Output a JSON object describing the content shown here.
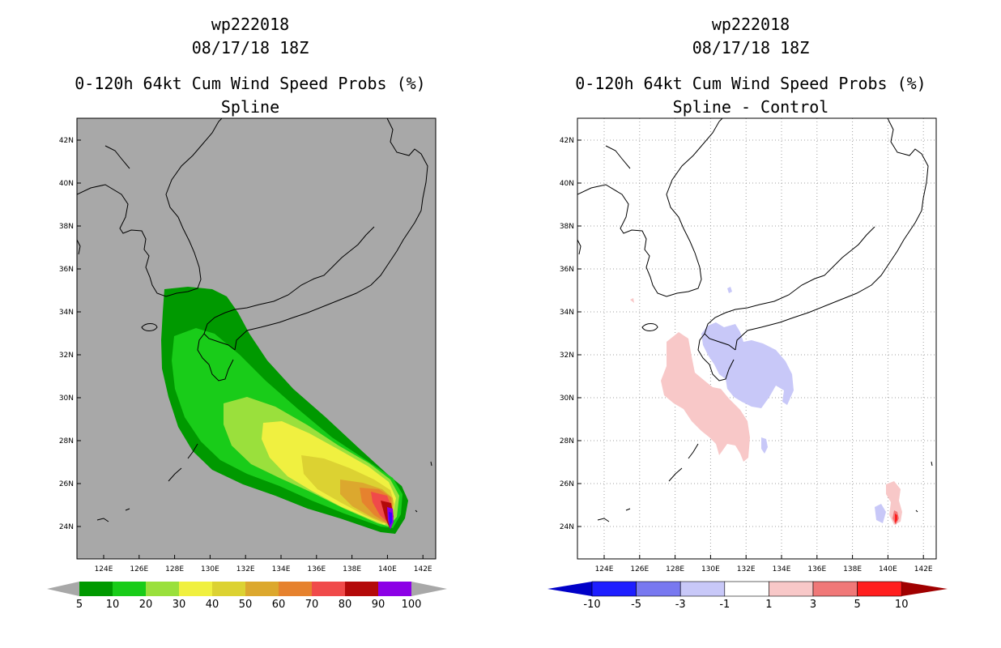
{
  "storm_id": "wp222018",
  "datetime": "08/17/18 18Z",
  "product": "0-120h 64kt Cum Wind Speed Probs (%)",
  "colors": {
    "land_sea_bg": "#a8a8a8",
    "coast": "#000000",
    "grid_dots": "#a0a0a0"
  },
  "axes": {
    "x_ticks": [
      "124E",
      "126E",
      "128E",
      "130E",
      "132E",
      "134E",
      "136E",
      "138E",
      "140E",
      "142E"
    ],
    "y_ticks": [
      "42N",
      "40N",
      "38N",
      "36N",
      "34N",
      "32N",
      "30N",
      "28N",
      "26N",
      "24N"
    ]
  },
  "left_panel": {
    "subtitle": "Spline",
    "colorbar": {
      "labels": [
        "5",
        "10",
        "20",
        "30",
        "40",
        "50",
        "60",
        "70",
        "80",
        "90",
        "100"
      ],
      "colors": [
        "#009900",
        "#19cc19",
        "#9ae03c",
        "#f0f040",
        "#dcd232",
        "#dca82e",
        "#e6822e",
        "#f04a4a",
        "#b40a0a",
        "#8c00e6"
      ],
      "end_color": "#a8a8a8"
    }
  },
  "right_panel": {
    "subtitle": "Spline - Control",
    "colorbar": {
      "labels": [
        "-10",
        "-5",
        "-3",
        "-1",
        "1",
        "3",
        "5",
        "10"
      ],
      "colors": [
        "#0000c8",
        "#1e1eff",
        "#7878f0",
        "#c8c8f8",
        "#ffffff",
        "#f8c8c8",
        "#f07878",
        "#ff1e1e",
        "#a00000"
      ]
    }
  }
}
